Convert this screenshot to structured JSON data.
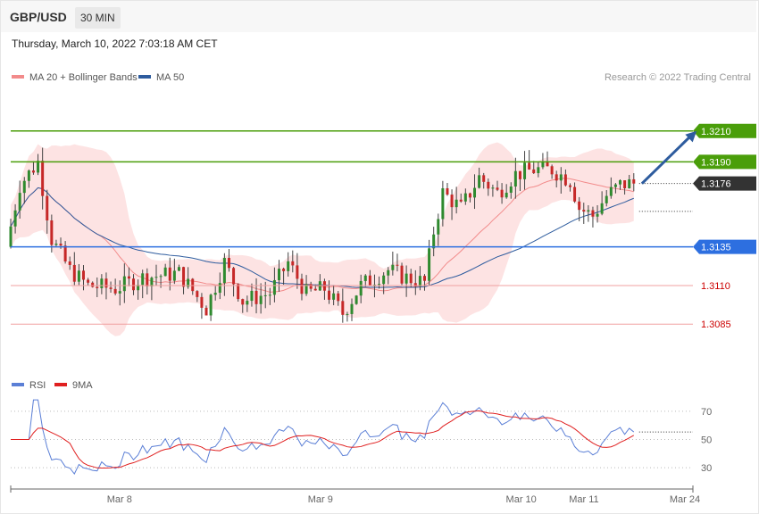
{
  "header": {
    "pair": "GBP/USD",
    "timeframe": "30 MIN",
    "datetime": "Thursday, March 10, 2022 7:03:18 AM CET"
  },
  "legend": {
    "ma20": "MA 20 + Bollinger Bands",
    "ma50": "MA 50",
    "ma20_color": "#f28b8b",
    "ma50_color": "#2e5c9e",
    "copyright": "Research © 2022 Trading Central"
  },
  "rsi_legend": {
    "rsi": "RSI",
    "ma9": "9MA",
    "rsi_color": "#5b7fd6",
    "ma9_color": "#e02020"
  },
  "chart_data": {
    "type": "candlestick",
    "y_range": [
      1.3058,
      1.3237
    ],
    "x_range": [
      0,
      150
    ],
    "x_ticks": [
      {
        "label": "Mar 8",
        "x": 26
      },
      {
        "label": "Mar 9",
        "x": 74
      },
      {
        "label": "Mar 10",
        "x": 122
      },
      {
        "label": "Mar 11",
        "x": 137
      },
      {
        "label": "Mar 24",
        "x": 151
      }
    ],
    "levels": [
      {
        "value": 1.321,
        "label": "1.3210",
        "kind": "resistance",
        "color": "#4a9e0a"
      },
      {
        "value": 1.319,
        "label": "1.3190",
        "kind": "resistance",
        "color": "#4a9e0a"
      },
      {
        "value": 1.3176,
        "label": "1.3176",
        "kind": "last",
        "color": "#333333"
      },
      {
        "value": 1.3135,
        "label": "1.3135",
        "kind": "pivot",
        "color": "#2d6fe0"
      },
      {
        "value": 1.311,
        "label": "1.3110",
        "kind": "support",
        "color": "#f0a0a0",
        "text_color": "#cc0000"
      },
      {
        "value": 1.3085,
        "label": "1.3085",
        "kind": "support",
        "color": "#f0a0a0",
        "text_color": "#cc0000"
      }
    ],
    "projection": {
      "from": [
        138,
        1.3176
      ],
      "to": [
        152,
        1.321
      ],
      "color": "#2e5c9e"
    },
    "rsi_range": [
      20,
      80
    ],
    "rsi_levels": [
      70,
      50,
      30
    ],
    "colors": {
      "up": "#2f8a2f",
      "down": "#c62828",
      "band": "#fde3e3"
    }
  }
}
